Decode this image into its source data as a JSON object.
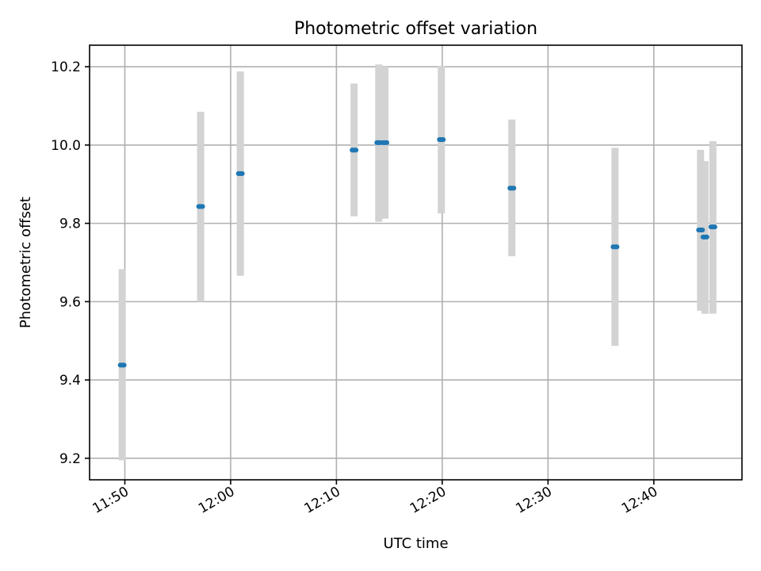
{
  "chart_data": {
    "type": "scatter",
    "title": "Photometric offset variation",
    "xlabel": "UTC time",
    "ylabel": "Photometric offset",
    "x_tick_labels": [
      "11:50",
      "12:00",
      "12:10",
      "12:20",
      "12:30",
      "12:40"
    ],
    "y_tick_labels": [
      "9.2",
      "9.4",
      "9.6",
      "9.8",
      "10.0",
      "10.2"
    ],
    "xlim": [
      "11:46:40",
      "12:48:20"
    ],
    "ylim": [
      9.145,
      10.255
    ],
    "grid": true,
    "points": [
      {
        "x": "11:49:45",
        "y": 9.438,
        "yerr_low": 9.195,
        "yerr_high": 9.683
      },
      {
        "x": "11:57:10",
        "y": 9.843,
        "yerr_low": 9.6,
        "yerr_high": 10.085
      },
      {
        "x": "12:00:55",
        "y": 9.927,
        "yerr_low": 9.666,
        "yerr_high": 10.188
      },
      {
        "x": "12:11:40",
        "y": 9.987,
        "yerr_low": 9.818,
        "yerr_high": 10.157
      },
      {
        "x": "12:14:00",
        "y": 10.006,
        "yerr_low": 9.804,
        "yerr_high": 10.206
      },
      {
        "x": "12:14:35",
        "y": 10.006,
        "yerr_low": 9.812,
        "yerr_high": 10.2
      },
      {
        "x": "12:19:55",
        "y": 10.014,
        "yerr_low": 9.825,
        "yerr_high": 10.202
      },
      {
        "x": "12:26:35",
        "y": 9.89,
        "yerr_low": 9.716,
        "yerr_high": 10.065
      },
      {
        "x": "12:36:20",
        "y": 9.74,
        "yerr_low": 9.487,
        "yerr_high": 9.993
      },
      {
        "x": "12:44:25",
        "y": 9.783,
        "yerr_low": 9.577,
        "yerr_high": 9.988
      },
      {
        "x": "12:44:50",
        "y": 9.765,
        "yerr_low": 9.569,
        "yerr_high": 9.959
      },
      {
        "x": "12:45:35",
        "y": 9.791,
        "yerr_low": 9.569,
        "yerr_high": 10.01
      }
    ],
    "marker_color": "#1f77b4",
    "errorbar_color": "#d3d3d3"
  }
}
